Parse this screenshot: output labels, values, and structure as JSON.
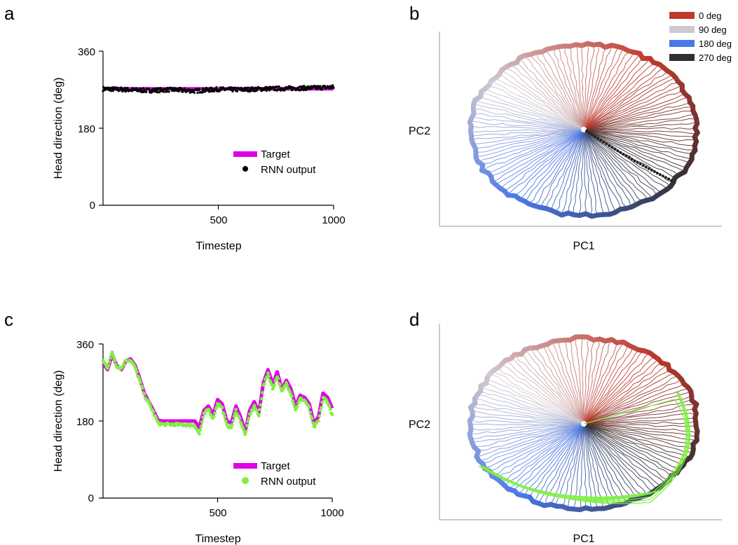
{
  "panels": {
    "a": "a",
    "b": "b",
    "c": "c",
    "d": "d"
  },
  "chart_data": [
    {
      "panel": "a",
      "type": "scatter",
      "xlabel": "Timestep",
      "ylabel": "Head direction (deg)",
      "xlim": [
        0,
        1000
      ],
      "ylim": [
        0,
        360
      ],
      "xticks": [
        "500",
        "1000"
      ],
      "yticks": [
        "0",
        "180",
        "360"
      ],
      "legend": [
        "Target",
        "RNN output"
      ],
      "legend_position": "lower-right",
      "colors": {
        "target": "#e000e8",
        "output": "#000000"
      },
      "series": [
        {
          "name": "Target",
          "x": [
            0,
            1000
          ],
          "y": [
            272,
            272
          ]
        },
        {
          "name": "RNN output",
          "x": [
            0,
            100,
            200,
            300,
            400,
            500,
            600,
            700,
            800,
            900,
            1000
          ],
          "y": [
            272,
            270,
            268,
            270,
            267,
            271,
            270,
            272,
            273,
            274,
            276
          ]
        }
      ]
    },
    {
      "panel": "b",
      "type": "scatter",
      "xlabel": "PC1",
      "ylabel": "PC2",
      "legend": [
        "0 deg",
        "90 deg",
        "180 deg",
        "270 deg"
      ],
      "legend_position": "top-right",
      "colors": {
        "0 deg": "#c0392b",
        "90 deg": "#cfc8d0",
        "180 deg": "#4a78e8",
        "270 deg": "#333033"
      },
      "highlight": true
    },
    {
      "panel": "c",
      "type": "line",
      "xlabel": "Timestep",
      "ylabel": "Head direction (deg)",
      "xlim": [
        0,
        1000
      ],
      "ylim": [
        0,
        360
      ],
      "xticks": [
        "500",
        "1000"
      ],
      "yticks": [
        "0",
        "180",
        "360"
      ],
      "legend": [
        "Target",
        "RNN output"
      ],
      "legend_position": "lower-right",
      "colors": {
        "target": "#e000e8",
        "output": "#80f040"
      },
      "series": [
        {
          "name": "Target",
          "x": [
            0,
            20,
            40,
            60,
            80,
            100,
            120,
            140,
            160,
            180,
            200,
            220,
            240,
            260,
            280,
            300,
            350,
            400,
            420,
            440,
            460,
            480,
            500,
            520,
            540,
            560,
            580,
            600,
            620,
            640,
            660,
            680,
            700,
            720,
            740,
            760,
            780,
            800,
            820,
            840,
            860,
            880,
            900,
            920,
            940,
            960,
            980,
            1000
          ],
          "y": [
            315,
            300,
            335,
            310,
            300,
            320,
            325,
            310,
            280,
            245,
            225,
            205,
            182,
            180,
            180,
            180,
            180,
            180,
            165,
            205,
            215,
            195,
            230,
            220,
            180,
            175,
            215,
            190,
            155,
            205,
            225,
            200,
            270,
            300,
            265,
            295,
            255,
            275,
            255,
            215,
            240,
            235,
            220,
            175,
            190,
            245,
            235,
            210
          ]
        },
        {
          "name": "RNN output",
          "x": [
            0,
            20,
            40,
            60,
            80,
            100,
            120,
            140,
            160,
            180,
            200,
            220,
            240,
            260,
            280,
            300,
            350,
            400,
            420,
            440,
            460,
            480,
            500,
            520,
            540,
            560,
            580,
            600,
            620,
            640,
            660,
            680,
            700,
            720,
            740,
            760,
            780,
            800,
            820,
            840,
            860,
            880,
            900,
            920,
            940,
            960,
            980,
            1000
          ],
          "y": [
            320,
            305,
            340,
            308,
            303,
            322,
            322,
            305,
            275,
            240,
            222,
            200,
            175,
            172,
            172,
            172,
            171,
            170,
            150,
            195,
            208,
            185,
            222,
            210,
            170,
            165,
            205,
            180,
            148,
            195,
            215,
            192,
            262,
            292,
            255,
            285,
            248,
            268,
            245,
            205,
            232,
            228,
            210,
            165,
            180,
            235,
            225,
            195
          ]
        }
      ]
    },
    {
      "panel": "d",
      "type": "scatter",
      "xlabel": "PC1",
      "ylabel": "PC2",
      "highlight": true
    }
  ]
}
